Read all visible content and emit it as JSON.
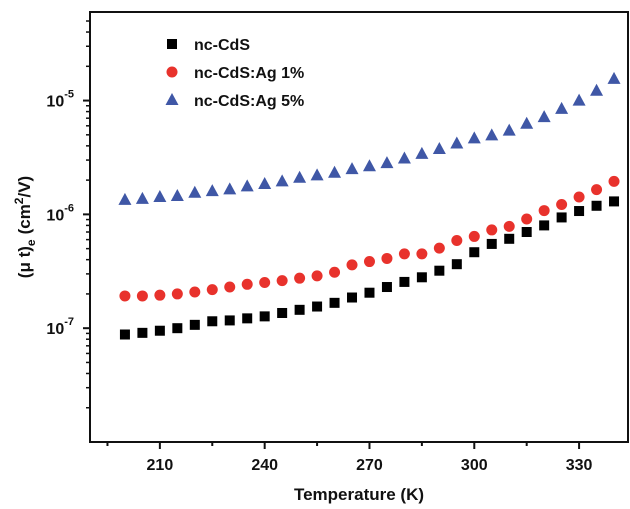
{
  "chart_data": {
    "type": "scatter",
    "title": "",
    "xlabel": "Temperature (K)",
    "ylabel": {
      "main": "(μ t)",
      "sub": "e",
      "unit_pre": "(cm",
      "unit_sup": "2",
      "unit_post": "/V)"
    },
    "x_ticks": [
      210,
      240,
      270,
      300,
      330
    ],
    "y_ticks": [
      {
        "value": 1e-07,
        "base": "10",
        "exp": "-7"
      },
      {
        "value": 1e-06,
        "base": "10",
        "exp": "-6"
      },
      {
        "value": 1e-05,
        "base": "10",
        "exp": "-5"
      }
    ],
    "xlim": [
      190,
      344
    ],
    "ylim": [
      1e-08,
      6e-05
    ],
    "y_scale": "log",
    "grid": false,
    "legend_position": "top-left",
    "x": [
      200,
      205,
      210,
      215,
      220,
      225,
      230,
      235,
      240,
      245,
      250,
      255,
      260,
      265,
      270,
      275,
      280,
      285,
      290,
      295,
      300,
      305,
      310,
      315,
      320,
      325,
      330,
      335,
      340
    ],
    "series": [
      {
        "name": "nc-CdS",
        "marker": "square",
        "color": "#000000",
        "values": [
          8.8e-08,
          9.1e-08,
          9.5e-08,
          1e-07,
          1.07e-07,
          1.15e-07,
          1.17e-07,
          1.22e-07,
          1.27e-07,
          1.36e-07,
          1.45e-07,
          1.55e-07,
          1.67e-07,
          1.86e-07,
          2.05e-07,
          2.3e-07,
          2.55e-07,
          2.8e-07,
          3.2e-07,
          3.65e-07,
          4.65e-07,
          5.5e-07,
          6.1e-07,
          7e-07,
          8e-07,
          9.4e-07,
          1.07e-06,
          1.19e-06,
          1.3e-06
        ]
      },
      {
        "name": "nc-CdS:Ag 1%",
        "marker": "circle",
        "color": "#e8322c",
        "values": [
          1.92e-07,
          1.92e-07,
          1.95e-07,
          2e-07,
          2.08e-07,
          2.18e-07,
          2.3e-07,
          2.43e-07,
          2.52e-07,
          2.62e-07,
          2.75e-07,
          2.88e-07,
          3.1e-07,
          3.6e-07,
          3.85e-07,
          4.1e-07,
          4.5e-07,
          4.5e-07,
          5.05e-07,
          5.9e-07,
          6.4e-07,
          7.3e-07,
          7.85e-07,
          9.1e-07,
          1.08e-06,
          1.22e-06,
          1.42e-06,
          1.65e-06,
          1.95e-06
        ]
      },
      {
        "name": "nc-CdS:Ag 5%",
        "marker": "triangle",
        "color": "#3f57a6",
        "values": [
          1.34e-06,
          1.37e-06,
          1.42e-06,
          1.45e-06,
          1.55e-06,
          1.6e-06,
          1.66e-06,
          1.76e-06,
          1.85e-06,
          1.95e-06,
          2.1e-06,
          2.2e-06,
          2.32e-06,
          2.5e-06,
          2.65e-06,
          2.82e-06,
          3.1e-06,
          3.4e-06,
          3.75e-06,
          4.2e-06,
          4.65e-06,
          4.95e-06,
          5.45e-06,
          6.25e-06,
          7.15e-06,
          8.45e-06,
          1e-05,
          1.22e-05,
          1.55e-05
        ]
      }
    ]
  }
}
